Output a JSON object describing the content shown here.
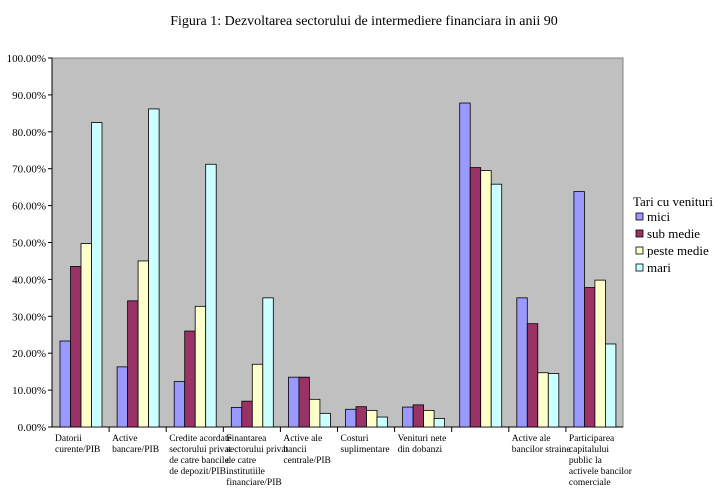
{
  "chart_data": {
    "type": "bar",
    "title": "Figura 1: Dezvoltarea sectorului de intermediere financiara in anii 90",
    "xlabel": "",
    "ylabel": "",
    "ylim": [
      0,
      100
    ],
    "yticks": [
      "0.00%",
      "10.00%",
      "20.00%",
      "30.00%",
      "40.00%",
      "50.00%",
      "60.00%",
      "70.00%",
      "80.00%",
      "90.00%",
      "100.00%"
    ],
    "grid": false,
    "legend_title": "Tari cu venituri",
    "legend_position": "right",
    "categories": [
      [
        "Datorii",
        "curente/PIB"
      ],
      [
        "Active",
        "bancare/PIB"
      ],
      [
        "Credite acordate",
        "sectorului privat",
        "de catre bancile",
        "de depozit/PIB"
      ],
      [
        "Finantarea",
        "sectorului privat",
        "de catre",
        "institutiile",
        "financiare/PIB"
      ],
      [
        "Active ale",
        "bancii",
        "centrale/PIB"
      ],
      [
        "Costuri",
        "suplimentare"
      ],
      [
        "Venituri nete",
        "din dobanzi"
      ],
      [],
      [
        "Active ale",
        "bancilor straine"
      ],
      [
        "Participarea",
        "capitalului",
        "public la",
        "activele bancilor",
        "comerciale"
      ]
    ],
    "series": [
      {
        "name": "mici",
        "color": "#9999ff",
        "values": [
          23.3,
          16.3,
          12.3,
          5.3,
          13.5,
          4.8,
          5.4,
          87.8,
          35.0,
          63.8
        ]
      },
      {
        "name": "sub medie",
        "color": "#993366",
        "values": [
          43.5,
          34.2,
          26.0,
          7.0,
          13.5,
          5.5,
          6.0,
          70.3,
          28.0,
          37.8
        ]
      },
      {
        "name": "peste medie",
        "color": "#ffffcc",
        "values": [
          49.7,
          45.0,
          32.7,
          17.0,
          7.5,
          4.5,
          4.5,
          69.5,
          14.7,
          39.8
        ]
      },
      {
        "name": "mari",
        "color": "#ccffff",
        "values": [
          82.5,
          86.2,
          71.2,
          35.0,
          3.7,
          2.7,
          2.3,
          65.8,
          14.5,
          22.5
        ]
      }
    ],
    "plot_background": "#c0c0c0"
  }
}
